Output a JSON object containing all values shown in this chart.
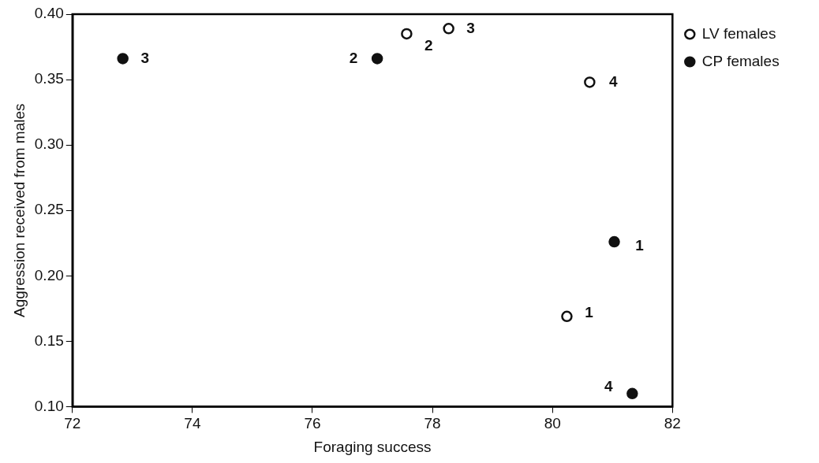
{
  "chart_data": {
    "type": "scatter",
    "xlabel": "Foraging success",
    "ylabel": "Aggression received from males",
    "xlim": [
      72,
      82
    ],
    "xticks": [
      72,
      74,
      76,
      78,
      80,
      82
    ],
    "ylim": [
      0.1,
      0.4
    ],
    "yticks": [
      {
        "value": 0.1,
        "label": "0.10"
      },
      {
        "value": 0.15,
        "label": "0.15"
      },
      {
        "value": 0.2,
        "label": "0.20"
      },
      {
        "value": 0.25,
        "label": "0.25"
      },
      {
        "value": 0.3,
        "label": "0.30"
      },
      {
        "value": 0.35,
        "label": "0.35"
      },
      {
        "value": 0.4,
        "label": "0.40"
      }
    ],
    "grid": false,
    "legend": "top right",
    "marker": "circle",
    "series": [
      {
        "name": "LV females",
        "color": "#111111",
        "x": [
          80.24,
          77.57,
          78.27,
          80.62
        ],
        "values": [
          0.169,
          0.385,
          0.389,
          0.348
        ]
      },
      {
        "name": "CP females",
        "color": "#111111",
        "x": [
          81.03,
          77.08,
          72.84,
          81.33
        ],
        "values": [
          0.226,
          0.366,
          0.366,
          0.11
        ]
      }
    ],
    "annotations": [
      {
        "text": "1",
        "x": 80.24,
        "y": 0.169
      },
      {
        "text": "2",
        "x": 77.57,
        "y": 0.385
      },
      {
        "text": "3",
        "x": 78.27,
        "y": 0.389
      },
      {
        "text": "4",
        "x": 80.62,
        "y": 0.348
      },
      {
        "text": "1",
        "x": 81.03,
        "y": 0.226
      },
      {
        "text": "2",
        "x": 77.08,
        "y": 0.366
      },
      {
        "text": "3",
        "x": 72.84,
        "y": 0.366
      },
      {
        "text": "4",
        "x": 81.33,
        "y": 0.11
      }
    ]
  }
}
